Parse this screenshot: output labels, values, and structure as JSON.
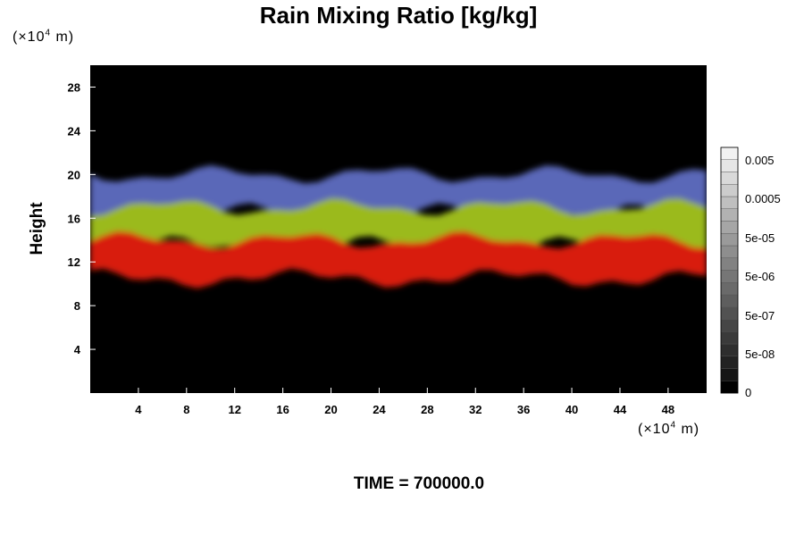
{
  "chart_data": {
    "type": "heatmap",
    "title": "Rain Mixing Ratio [kg/kg]",
    "ylabel": "Height",
    "y_unit": {
      "prefix": "(×10",
      "exp": "4",
      "suffix": " m)"
    },
    "x_unit": {
      "prefix": "(×10",
      "exp": "4",
      "suffix": " m)"
    },
    "xlim": [
      0,
      51.2
    ],
    "ylim": [
      0,
      30
    ],
    "x_ticks": [
      4,
      8,
      12,
      16,
      20,
      24,
      28,
      32,
      36,
      40,
      44,
      48
    ],
    "y_ticks": [
      4,
      8,
      12,
      16,
      20,
      24,
      28
    ],
    "bands": [
      {
        "name": "blue",
        "color": "#5a68b8",
        "y_range": [
          16.5,
          20
        ]
      },
      {
        "name": "yellow-green",
        "color": "#9bba1c",
        "y_range": [
          13.5,
          17
        ]
      },
      {
        "name": "red",
        "color": "#d81b10",
        "y_range": [
          10.5,
          14
        ]
      }
    ],
    "colorbar": {
      "ticks": [
        "0.005",
        "0.0005",
        "5e-05",
        "5e-06",
        "5e-07",
        "5e-08",
        "0"
      ],
      "colors": [
        "#000000",
        "#151515",
        "#222222",
        "#2e2e2e",
        "#3a3a3a",
        "#464646",
        "#525252",
        "#5e5e5e",
        "#6a6a6a",
        "#767676",
        "#828282",
        "#8e8e8e",
        "#9a9a9a",
        "#a6a6a6",
        "#b2b2b2",
        "#bfbfbf",
        "#cccccc",
        "#d9d9d9",
        "#e6e6e6",
        "#f2f2f2"
      ]
    }
  },
  "footer": {
    "time_text": "TIME = 700000.0"
  }
}
